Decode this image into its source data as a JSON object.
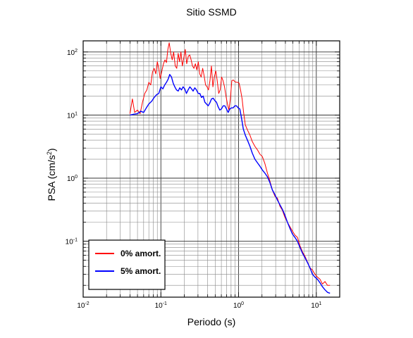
{
  "chart_data": {
    "type": "line",
    "title": "Sitio SSMD",
    "xlabel": "Periodo (s)",
    "ylabel": {
      "base": "PSA (cm/s",
      "exponent": "2",
      "close": ")"
    },
    "xscale": "log",
    "yscale": "log",
    "xlim": [
      0.01,
      20
    ],
    "ylim": [
      0.013,
      150
    ],
    "grid": true,
    "legend_position": "bottom-left",
    "x_ticks": [
      {
        "value": 0.01,
        "base": "10",
        "exp": "-2"
      },
      {
        "value": 0.1,
        "base": "10",
        "exp": "-1"
      },
      {
        "value": 1,
        "base": "10",
        "exp": "0"
      },
      {
        "value": 10,
        "base": "10",
        "exp": "1"
      }
    ],
    "y_ticks": [
      {
        "value": 0.1,
        "base": "10",
        "exp": "-1"
      },
      {
        "value": 1,
        "base": "10",
        "exp": "0"
      },
      {
        "value": 10,
        "base": "10",
        "exp": "1"
      },
      {
        "value": 100,
        "base": "10",
        "exp": "2"
      }
    ],
    "series": [
      {
        "name": "0% amort.",
        "color": "#ff0000",
        "points": [
          [
            0.04,
            10.5
          ],
          [
            0.043,
            18
          ],
          [
            0.046,
            11
          ],
          [
            0.05,
            12
          ],
          [
            0.054,
            10.5
          ],
          [
            0.058,
            16
          ],
          [
            0.062,
            22
          ],
          [
            0.066,
            25
          ],
          [
            0.07,
            33
          ],
          [
            0.074,
            30
          ],
          [
            0.078,
            48
          ],
          [
            0.082,
            55
          ],
          [
            0.086,
            45
          ],
          [
            0.09,
            70
          ],
          [
            0.094,
            55
          ],
          [
            0.098,
            38
          ],
          [
            0.103,
            50
          ],
          [
            0.108,
            65
          ],
          [
            0.113,
            75
          ],
          [
            0.118,
            68
          ],
          [
            0.123,
            110
          ],
          [
            0.128,
            140
          ],
          [
            0.134,
            95
          ],
          [
            0.14,
            75
          ],
          [
            0.146,
            100
          ],
          [
            0.153,
            60
          ],
          [
            0.16,
            55
          ],
          [
            0.167,
            95
          ],
          [
            0.174,
            70
          ],
          [
            0.181,
            100
          ],
          [
            0.189,
            60
          ],
          [
            0.197,
            80
          ],
          [
            0.206,
            110
          ],
          [
            0.215,
            65
          ],
          [
            0.225,
            85
          ],
          [
            0.235,
            90
          ],
          [
            0.245,
            75
          ],
          [
            0.255,
            60
          ],
          [
            0.266,
            55
          ],
          [
            0.278,
            65
          ],
          [
            0.29,
            52
          ],
          [
            0.303,
            70
          ],
          [
            0.316,
            45
          ],
          [
            0.33,
            40
          ],
          [
            0.345,
            55
          ],
          [
            0.36,
            42
          ],
          [
            0.376,
            30
          ],
          [
            0.393,
            28
          ],
          [
            0.41,
            25
          ],
          [
            0.428,
            35
          ],
          [
            0.447,
            60
          ],
          [
            0.467,
            28
          ],
          [
            0.487,
            40
          ],
          [
            0.509,
            50
          ],
          [
            0.531,
            35
          ],
          [
            0.555,
            22
          ],
          [
            0.579,
            25
          ],
          [
            0.605,
            40
          ],
          [
            0.631,
            35
          ],
          [
            0.659,
            28
          ],
          [
            0.688,
            20
          ],
          [
            0.719,
            15
          ],
          [
            0.75,
            12
          ],
          [
            0.783,
            18
          ],
          [
            0.818,
            35
          ],
          [
            0.854,
            36
          ],
          [
            0.892,
            34
          ],
          [
            0.931,
            33
          ],
          [
            0.972,
            33
          ],
          [
            1.015,
            32
          ],
          [
            1.06,
            25
          ],
          [
            1.11,
            18
          ],
          [
            1.16,
            11
          ],
          [
            1.22,
            7
          ],
          [
            1.3,
            5.8
          ],
          [
            1.4,
            4.8
          ],
          [
            1.5,
            3.8
          ],
          [
            1.62,
            3.2
          ],
          [
            1.75,
            2.8
          ],
          [
            1.88,
            2.4
          ],
          [
            2.02,
            2.2
          ],
          [
            2.18,
            1.7
          ],
          [
            2.35,
            1.2
          ],
          [
            2.53,
            0.9
          ],
          [
            2.72,
            0.65
          ],
          [
            2.93,
            0.52
          ],
          [
            3.16,
            0.48
          ],
          [
            3.4,
            0.36
          ],
          [
            3.66,
            0.31
          ],
          [
            3.94,
            0.24
          ],
          [
            4.25,
            0.2
          ],
          [
            4.58,
            0.17
          ],
          [
            4.93,
            0.145
          ],
          [
            5.31,
            0.125
          ],
          [
            5.72,
            0.115
          ],
          [
            6.16,
            0.085
          ],
          [
            6.63,
            0.068
          ],
          [
            7.14,
            0.058
          ],
          [
            7.69,
            0.047
          ],
          [
            8.28,
            0.038
          ],
          [
            8.92,
            0.035
          ],
          [
            9.61,
            0.03
          ],
          [
            10.35,
            0.027
          ],
          [
            11.15,
            0.025
          ],
          [
            12.0,
            0.021
          ],
          [
            12.93,
            0.023
          ],
          [
            13.93,
            0.02
          ],
          [
            15.0,
            0.02
          ]
        ]
      },
      {
        "name": "5% amort.",
        "color": "#0000ff",
        "points": [
          [
            0.04,
            10
          ],
          [
            0.045,
            10.3
          ],
          [
            0.05,
            10.5
          ],
          [
            0.055,
            11.5
          ],
          [
            0.06,
            11
          ],
          [
            0.065,
            13
          ],
          [
            0.07,
            15
          ],
          [
            0.076,
            16.5
          ],
          [
            0.082,
            19
          ],
          [
            0.088,
            21
          ],
          [
            0.094,
            22
          ],
          [
            0.1,
            28
          ],
          [
            0.106,
            26
          ],
          [
            0.112,
            30
          ],
          [
            0.118,
            33
          ],
          [
            0.124,
            37
          ],
          [
            0.13,
            44
          ],
          [
            0.137,
            40
          ],
          [
            0.144,
            32
          ],
          [
            0.151,
            28
          ],
          [
            0.159,
            25
          ],
          [
            0.167,
            24
          ],
          [
            0.175,
            27
          ],
          [
            0.184,
            25
          ],
          [
            0.193,
            28
          ],
          [
            0.203,
            26
          ],
          [
            0.213,
            22
          ],
          [
            0.224,
            25
          ],
          [
            0.236,
            28
          ],
          [
            0.248,
            26
          ],
          [
            0.26,
            24
          ],
          [
            0.273,
            27
          ],
          [
            0.287,
            25
          ],
          [
            0.302,
            22
          ],
          [
            0.317,
            22
          ],
          [
            0.333,
            19
          ],
          [
            0.35,
            20
          ],
          [
            0.368,
            16
          ],
          [
            0.386,
            15
          ],
          [
            0.406,
            14
          ],
          [
            0.426,
            15.5
          ],
          [
            0.448,
            18
          ],
          [
            0.471,
            18.5
          ],
          [
            0.494,
            17
          ],
          [
            0.519,
            16
          ],
          [
            0.546,
            13.5
          ],
          [
            0.573,
            12
          ],
          [
            0.602,
            12.5
          ],
          [
            0.633,
            14
          ],
          [
            0.665,
            14
          ],
          [
            0.698,
            12.5
          ],
          [
            0.734,
            11
          ],
          [
            0.771,
            12.5
          ],
          [
            0.81,
            13
          ],
          [
            0.851,
            13
          ],
          [
            0.894,
            14
          ],
          [
            0.94,
            14
          ],
          [
            0.987,
            13
          ],
          [
            1.037,
            12.5
          ],
          [
            1.09,
            9
          ],
          [
            1.15,
            6
          ],
          [
            1.22,
            4.8
          ],
          [
            1.3,
            4
          ],
          [
            1.4,
            3.2
          ],
          [
            1.5,
            2.5
          ],
          [
            1.62,
            2
          ],
          [
            1.75,
            1.75
          ],
          [
            1.88,
            1.55
          ],
          [
            2.02,
            1.35
          ],
          [
            2.18,
            1.2
          ],
          [
            2.35,
            1.05
          ],
          [
            2.53,
            0.85
          ],
          [
            2.72,
            0.65
          ],
          [
            2.93,
            0.55
          ],
          [
            3.16,
            0.45
          ],
          [
            3.4,
            0.38
          ],
          [
            3.66,
            0.32
          ],
          [
            3.94,
            0.26
          ],
          [
            4.25,
            0.2
          ],
          [
            4.58,
            0.16
          ],
          [
            4.93,
            0.13
          ],
          [
            5.31,
            0.115
          ],
          [
            5.72,
            0.1
          ],
          [
            6.16,
            0.08
          ],
          [
            6.63,
            0.065
          ],
          [
            7.14,
            0.055
          ],
          [
            7.69,
            0.046
          ],
          [
            8.28,
            0.038
          ],
          [
            8.92,
            0.03
          ],
          [
            9.61,
            0.027
          ],
          [
            10.35,
            0.025
          ],
          [
            11.15,
            0.022
          ],
          [
            12.0,
            0.019
          ],
          [
            12.93,
            0.017
          ],
          [
            13.93,
            0.0155
          ],
          [
            15.0,
            0.015
          ]
        ]
      }
    ]
  }
}
